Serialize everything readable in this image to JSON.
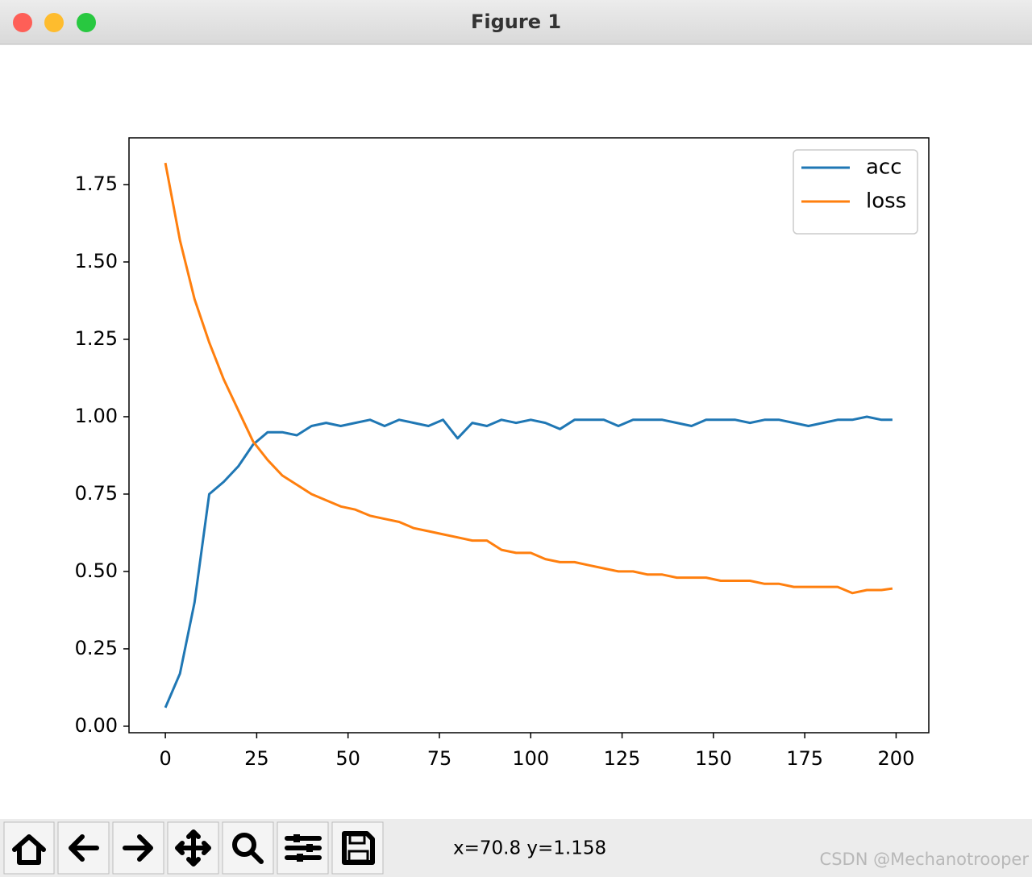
{
  "window": {
    "title": "Figure 1"
  },
  "chart_data": {
    "type": "line",
    "x": [
      0,
      4,
      8,
      12,
      16,
      20,
      24,
      28,
      32,
      36,
      40,
      44,
      48,
      52,
      56,
      60,
      64,
      68,
      72,
      76,
      80,
      84,
      88,
      92,
      96,
      100,
      104,
      108,
      112,
      116,
      120,
      124,
      128,
      132,
      136,
      140,
      144,
      148,
      152,
      156,
      160,
      164,
      168,
      172,
      176,
      180,
      184,
      188,
      192,
      196,
      199
    ],
    "series": [
      {
        "name": "acc",
        "color": "#1f77b4",
        "values": [
          0.06,
          0.17,
          0.4,
          0.75,
          0.79,
          0.84,
          0.91,
          0.95,
          0.95,
          0.94,
          0.97,
          0.98,
          0.97,
          0.98,
          0.99,
          0.97,
          0.99,
          0.98,
          0.97,
          0.99,
          0.93,
          0.98,
          0.97,
          0.99,
          0.98,
          0.99,
          0.98,
          0.96,
          0.99,
          0.99,
          0.99,
          0.97,
          0.99,
          0.99,
          0.99,
          0.98,
          0.97,
          0.99,
          0.99,
          0.99,
          0.98,
          0.99,
          0.99,
          0.98,
          0.97,
          0.98,
          0.99,
          0.99,
          1.0,
          0.99,
          0.99
        ]
      },
      {
        "name": "loss",
        "color": "#ff7f0e",
        "values": [
          1.82,
          1.57,
          1.38,
          1.24,
          1.12,
          1.02,
          0.92,
          0.86,
          0.81,
          0.78,
          0.75,
          0.73,
          0.71,
          0.7,
          0.68,
          0.67,
          0.66,
          0.64,
          0.63,
          0.62,
          0.61,
          0.6,
          0.6,
          0.57,
          0.56,
          0.56,
          0.54,
          0.53,
          0.53,
          0.52,
          0.51,
          0.5,
          0.5,
          0.49,
          0.49,
          0.48,
          0.48,
          0.48,
          0.47,
          0.47,
          0.47,
          0.46,
          0.46,
          0.45,
          0.45,
          0.45,
          0.45,
          0.43,
          0.44,
          0.44,
          0.445
        ]
      }
    ],
    "xlim": [
      -9.95,
      208.95
    ],
    "ylim": [
      -0.021,
      1.901
    ],
    "xticks": [
      0,
      25,
      50,
      75,
      100,
      125,
      150,
      175,
      200
    ],
    "yticks": [
      {
        "value": 0,
        "label": "0.00"
      },
      {
        "value": 0.25,
        "label": "0.25"
      },
      {
        "value": 0.5,
        "label": "0.50"
      },
      {
        "value": 0.75,
        "label": "0.75"
      },
      {
        "value": 1,
        "label": "1.00"
      },
      {
        "value": 1.25,
        "label": "1.25"
      },
      {
        "value": 1.5,
        "label": "1.50"
      },
      {
        "value": 1.75,
        "label": "1.75"
      }
    ],
    "legend": "upper right"
  },
  "toolbar": {
    "status": "x=70.8 y=1.158"
  },
  "watermark": "CSDN @Mechanotrooper"
}
